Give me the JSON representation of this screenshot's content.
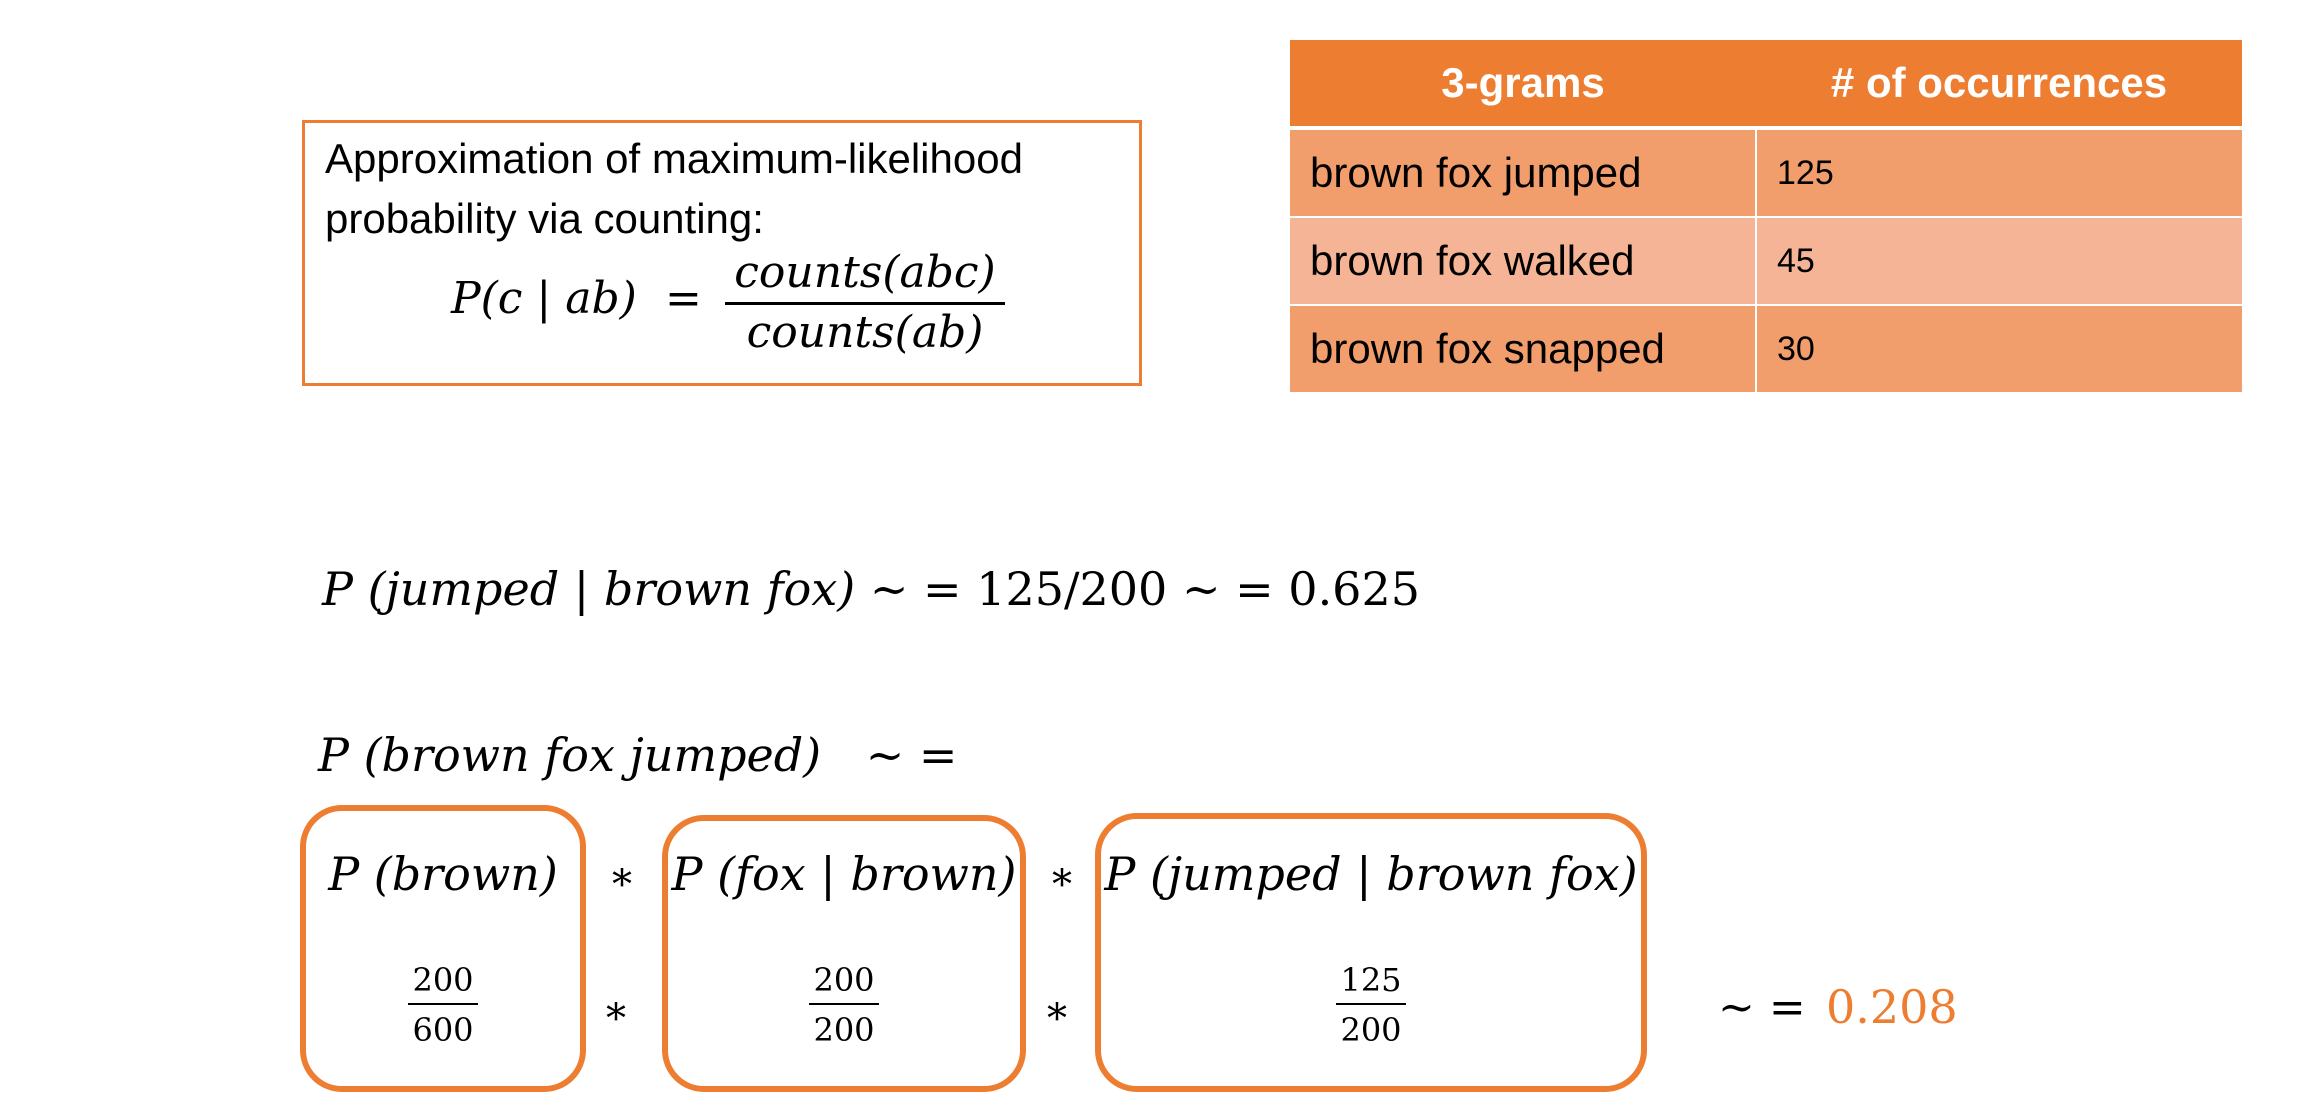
{
  "definition": {
    "line1": "Approximation of maximum-likelihood",
    "line2": "probability via counting:",
    "lhs": "P(c | ab)",
    "eq": "=",
    "numerator": "counts(abc)",
    "denominator": "counts(ab)"
  },
  "table": {
    "headers": [
      "3-grams",
      "# of occurrences"
    ],
    "rows": [
      {
        "gram": "brown fox jumped",
        "count": "125"
      },
      {
        "gram": "brown fox walked",
        "count": "45"
      },
      {
        "gram": "brown fox snapped",
        "count": "30"
      }
    ]
  },
  "equation1": {
    "lhs": "P (jumped | brown fox)",
    "approx1": "~ =",
    "value": "125/200",
    "approx2": "~ =",
    "result": "0.625"
  },
  "equation2": {
    "lhs": "P (brown fox jumped)",
    "approx": "~ ="
  },
  "factors": [
    {
      "label": "P (brown)",
      "numerator": "200",
      "denominator": "600"
    },
    {
      "label": "P (fox | brown)",
      "numerator": "200",
      "denominator": "200"
    },
    {
      "label": "P (jumped | brown fox)",
      "numerator": "125",
      "denominator": "200"
    }
  ],
  "operators": {
    "times": "*"
  },
  "result": {
    "approx": "~ =",
    "value": "0.208"
  },
  "colors": {
    "accent": "#ed7d31"
  }
}
